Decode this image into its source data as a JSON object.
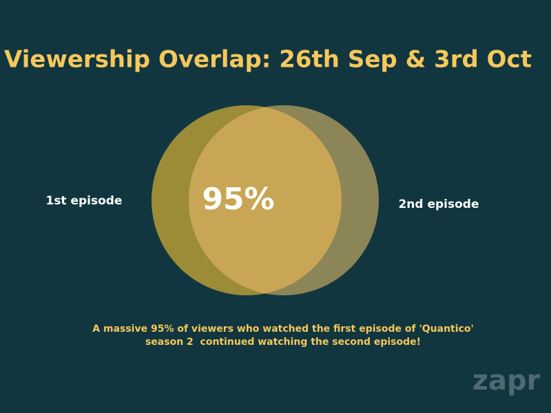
{
  "title": "Viewership Overlap: 26th Sep & 3rd Oct",
  "venn": {
    "left_label": "1st episode",
    "right_label": "2nd episode",
    "overlap_label": "95%"
  },
  "caption": {
    "lines": [
      "A massive 95% of viewers who watched the first episode of 'Quantico'",
      "season 2  continued watching the second episode!"
    ]
  },
  "logo": "zapr"
}
